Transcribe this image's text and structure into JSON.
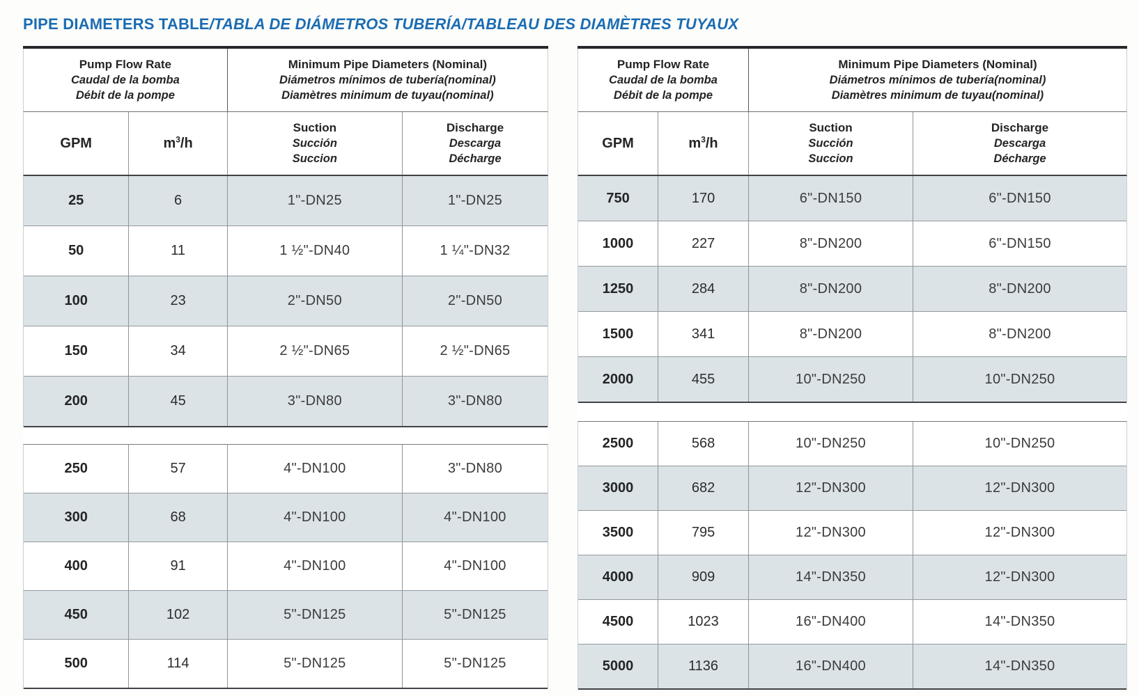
{
  "title": {
    "main": "PIPE DIAMETERS TABLE",
    "rest": "/TABLA DE DIÁMETROS TUBERÍA/TABLEAU DES DIAMÈTRES TUYAUX"
  },
  "colors": {
    "title_blue": "#1b6cb1",
    "row_shade": "#dce3e7",
    "grid_line": "#8e9498",
    "heavy_line": "#26282a"
  },
  "column_headers": {
    "flow_group": {
      "en": "Pump Flow Rate",
      "es": "Caudal de la bomba",
      "fr": "Débit de la pompe"
    },
    "size_group": {
      "en": "Minimum Pipe Diameters (Nominal)",
      "es": "Diámetros mínimos de tubería(nominal)",
      "fr": "Diamètres minimum de tuyau(nominal)"
    },
    "gpm": "GPM",
    "m3h": {
      "base": "m",
      "sup": "3",
      "rest": "/h"
    },
    "suction": {
      "en": "Suction",
      "es": "Succión",
      "fr": "Succion"
    },
    "discharge": {
      "en": "Discharge",
      "es": "Descarga",
      "fr": "Décharge"
    }
  },
  "tables": [
    {
      "cls": "left",
      "blocks": [
        {
          "rows": [
            {
              "gpm": "25",
              "m3h": "6",
              "suction": "1\"-DN25",
              "discharge": "1\"-DN25",
              "shaded": true
            },
            {
              "gpm": "50",
              "m3h": "11",
              "suction": "1 ½\"-DN40",
              "discharge": "1 ¼\"-DN32",
              "shaded": false
            },
            {
              "gpm": "100",
              "m3h": "23",
              "suction": "2\"-DN50",
              "discharge": "2\"-DN50",
              "shaded": true
            },
            {
              "gpm": "150",
              "m3h": "34",
              "suction": "2 ½\"-DN65",
              "discharge": "2 ½\"-DN65",
              "shaded": false
            },
            {
              "gpm": "200",
              "m3h": "45",
              "suction": "3\"-DN80",
              "discharge": "3\"-DN80",
              "shaded": true
            }
          ]
        },
        {
          "rows": [
            {
              "gpm": "250",
              "m3h": "57",
              "suction": "4\"-DN100",
              "discharge": "3\"-DN80",
              "shaded": false
            },
            {
              "gpm": "300",
              "m3h": "68",
              "suction": "4\"-DN100",
              "discharge": "4\"-DN100",
              "shaded": true
            },
            {
              "gpm": "400",
              "m3h": "91",
              "suction": "4\"-DN100",
              "discharge": "4\"-DN100",
              "shaded": false
            },
            {
              "gpm": "450",
              "m3h": "102",
              "suction": "5\"-DN125",
              "discharge": "5\"-DN125",
              "shaded": true
            },
            {
              "gpm": "500",
              "m3h": "114",
              "suction": "5\"-DN125",
              "discharge": "5\"-DN125",
              "shaded": false
            }
          ]
        }
      ]
    },
    {
      "cls": "right",
      "blocks": [
        {
          "rows": [
            {
              "gpm": "750",
              "m3h": "170",
              "suction": "6\"-DN150",
              "discharge": "6\"-DN150",
              "shaded": true
            },
            {
              "gpm": "1000",
              "m3h": "227",
              "suction": "8\"-DN200",
              "discharge": "6\"-DN150",
              "shaded": false
            },
            {
              "gpm": "1250",
              "m3h": "284",
              "suction": "8\"-DN200",
              "discharge": "8\"-DN200",
              "shaded": true
            },
            {
              "gpm": "1500",
              "m3h": "341",
              "suction": "8\"-DN200",
              "discharge": "8\"-DN200",
              "shaded": false
            },
            {
              "gpm": "2000",
              "m3h": "455",
              "suction": "10\"-DN250",
              "discharge": "10\"-DN250",
              "shaded": true
            }
          ]
        },
        {
          "rows": [
            {
              "gpm": "2500",
              "m3h": "568",
              "suction": "10\"-DN250",
              "discharge": "10\"-DN250",
              "shaded": false
            },
            {
              "gpm": "3000",
              "m3h": "682",
              "suction": "12\"-DN300",
              "discharge": "12\"-DN300",
              "shaded": true
            },
            {
              "gpm": "3500",
              "m3h": "795",
              "suction": "12\"-DN300",
              "discharge": "12\"-DN300",
              "shaded": false
            },
            {
              "gpm": "4000",
              "m3h": "909",
              "suction": "14\"-DN350",
              "discharge": "12\"-DN300",
              "shaded": true
            },
            {
              "gpm": "4500",
              "m3h": "1023",
              "suction": "16\"-DN400",
              "discharge": "14\"-DN350",
              "shaded": false
            },
            {
              "gpm": "5000",
              "m3h": "1136",
              "suction": "16\"-DN400",
              "discharge": "14\"-DN350",
              "shaded": true
            }
          ]
        }
      ]
    }
  ]
}
